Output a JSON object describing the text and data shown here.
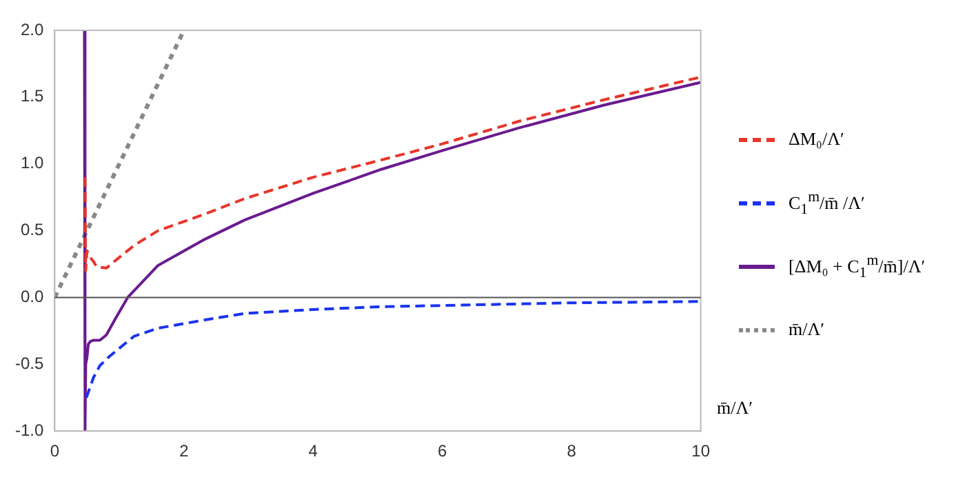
{
  "chart_data": {
    "type": "line",
    "xlabel": "m̄/Λ′",
    "xlim": [
      0,
      10
    ],
    "xticks": [
      0,
      2,
      4,
      6,
      8,
      10
    ],
    "ylim": [
      -1,
      2
    ],
    "yticks": [
      {
        "value": -1,
        "label": "-1.0"
      },
      {
        "value": -0.5,
        "label": "-0.5"
      },
      {
        "value": 0,
        "label": "0.0"
      },
      {
        "value": 0.5,
        "label": "0.5"
      },
      {
        "value": 1,
        "label": "1.0"
      },
      {
        "value": 1.5,
        "label": "1.5"
      },
      {
        "value": 2,
        "label": "2.0"
      }
    ],
    "grid": false,
    "legend": "right",
    "ref_lines": [
      {
        "axis": "y",
        "value": 0,
        "color": "#555555"
      }
    ],
    "series": [
      {
        "name": "ΔM₀/Λ′",
        "color": "#e8352a",
        "line_style": "dashed",
        "x": [
          0.47,
          0.48,
          0.5,
          0.55,
          0.6,
          0.65,
          0.8,
          1.0,
          1.23,
          1.6,
          2.3,
          2.94,
          4,
          5.06,
          6,
          7.19,
          8.5,
          10
        ],
        "values": [
          0.9,
          0.2,
          0.35,
          0.3,
          0.27,
          0.23,
          0.22,
          0.3,
          0.39,
          0.5,
          0.62,
          0.74,
          0.9,
          1.03,
          1.15,
          1.32,
          1.48,
          1.65
        ]
      },
      {
        "name": "C$_{1}$$^{m}$/m̄ /Λ′",
        "color": "#1a33f0",
        "line_style": "dashed",
        "x": [
          0.49,
          0.6,
          0.7,
          0.85,
          1.0,
          1.23,
          1.6,
          2.3,
          2.94,
          4,
          5,
          6,
          8,
          10
        ],
        "values": [
          -0.75,
          -0.6,
          -0.51,
          -0.44,
          -0.38,
          -0.29,
          -0.23,
          -0.17,
          -0.12,
          -0.09,
          -0.07,
          -0.06,
          -0.04,
          -0.03
        ]
      },
      {
        "name": "[ΔM₀ + C$_{1}$$^{m}$/m̄]/Λ′",
        "color": "#6a1b8f",
        "line_style": "solid",
        "x": [
          0.46,
          0.47,
          0.48,
          0.5,
          0.52,
          0.55,
          0.6,
          0.7,
          0.8,
          0.95,
          1.13,
          1.6,
          2.3,
          2.94,
          4,
          5.06,
          6,
          7.19,
          8.5,
          10
        ],
        "values": [
          2.0,
          -1.0,
          -0.5,
          -0.45,
          -0.35,
          -0.33,
          -0.32,
          -0.32,
          -0.28,
          -0.15,
          0,
          0.24,
          0.43,
          0.58,
          0.78,
          0.96,
          1.1,
          1.27,
          1.44,
          1.61
        ]
      },
      {
        "name": "m̄/Λ′",
        "color": "#888888",
        "line_style": "dotted",
        "x": [
          0,
          2
        ],
        "values": [
          0,
          2
        ]
      }
    ]
  }
}
